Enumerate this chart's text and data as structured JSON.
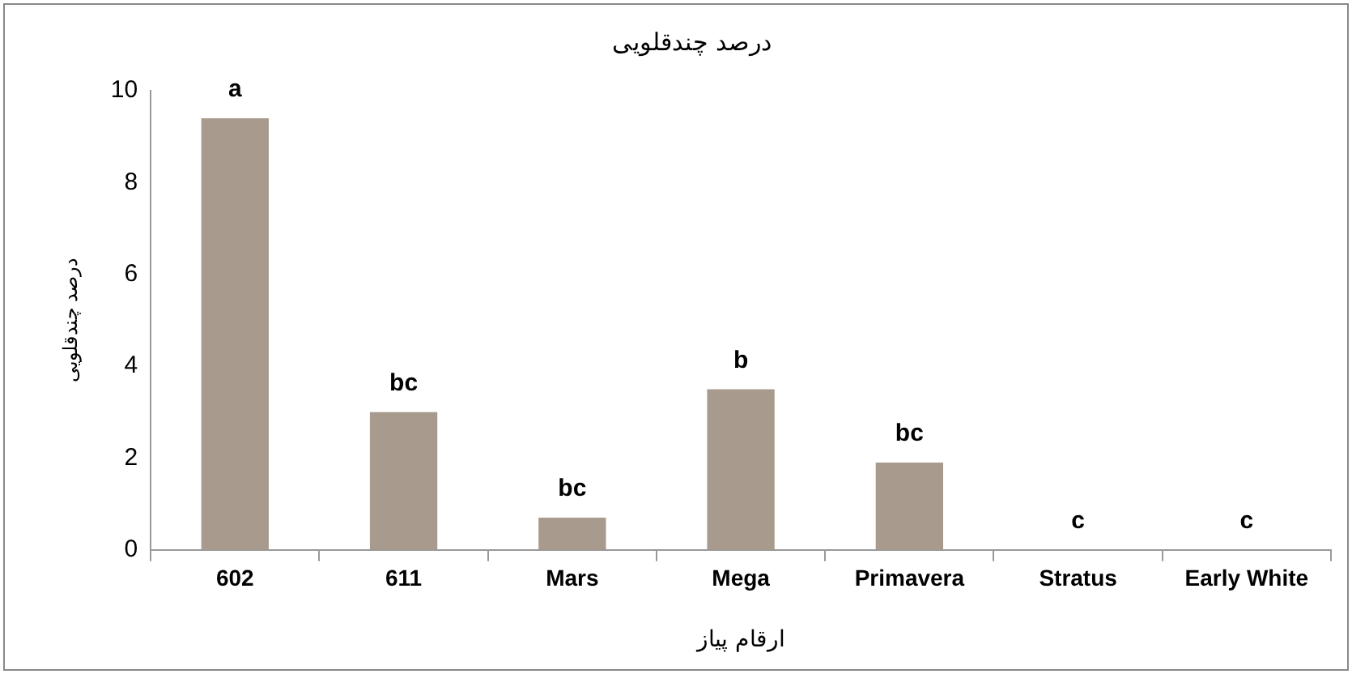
{
  "chart_data": {
    "type": "bar",
    "title": "درصد چندقلویی",
    "xlabel": "ارقام پیاز",
    "ylabel": "درصد چندقلویی",
    "categories": [
      "602",
      "611",
      "Mars",
      "Mega",
      "Primavera",
      "Stratus",
      "Early White"
    ],
    "values": [
      9.4,
      3.0,
      0.7,
      3.5,
      1.9,
      0,
      0
    ],
    "color": "#a89a8c",
    "ylim": [
      0,
      10
    ],
    "yticks": [
      0,
      2,
      4,
      6,
      8,
      10
    ],
    "legend": false,
    "annotations": [
      {
        "text": "a",
        "x": "602",
        "y": 9.4
      },
      {
        "text": "bc",
        "x": "611",
        "y": 3.0
      },
      {
        "text": "bc",
        "x": "Mars",
        "y": 0.7
      },
      {
        "text": "b",
        "x": "Mega",
        "y": 3.5
      },
      {
        "text": "bc",
        "x": "Primavera",
        "y": 1.9
      },
      {
        "text": "c",
        "x": "Stratus",
        "y": 0
      },
      {
        "text": "c",
        "x": "Early White",
        "y": 0
      }
    ]
  }
}
